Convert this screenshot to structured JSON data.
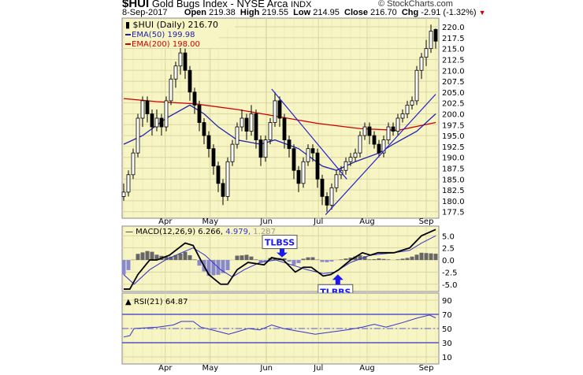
{
  "header": {
    "symbol": "$HUI",
    "name": "Gold Bugs Index - NYSE Arca",
    "exchange": "INDX",
    "brand": "© StockCharts.com",
    "date": "8-Sep-2017",
    "open_label": "Open",
    "open": "219.38",
    "high_label": "High",
    "high": "219.55",
    "low_label": "Low",
    "low": "214.95",
    "close_label": "Close",
    "close": "216.70",
    "chg_label": "Chg",
    "chg": "-2.91 (-1.32%)"
  },
  "chart_data": [
    {
      "type": "candlestick",
      "legend": [
        "$HUI (Daily) 216.70",
        "EMA(50) 199.98",
        "EMA(200) 198.00"
      ],
      "legend_placement": "top-left",
      "colors": {
        "price": "#000000",
        "ema50": "#2020b0",
        "ema200": "#cc0000",
        "trendline": "#2020d0",
        "background": "#f8f5c4",
        "grid": "#d9d6a0"
      },
      "ylim": [
        176,
        222
      ],
      "yticks": [
        "177.5",
        "180.0",
        "182.5",
        "185.0",
        "187.5",
        "190.0",
        "192.5",
        "195.0",
        "197.5",
        "200.0",
        "202.5",
        "205.0",
        "207.5",
        "210.0",
        "212.5",
        "215.0",
        "217.5",
        "220.0"
      ],
      "months": [
        {
          "label": "Apr",
          "at": 8.8
        },
        {
          "label": "May",
          "at": 18.3
        },
        {
          "label": "Jun",
          "at": 30.2
        },
        {
          "label": "Jul",
          "at": 41.2
        },
        {
          "label": "Aug",
          "at": 51.5
        },
        {
          "label": "Sep",
          "at": 64
        }
      ],
      "ohlc": [
        [
          181,
          184,
          180,
          182
        ],
        [
          182,
          187,
          181,
          186
        ],
        [
          186,
          192,
          185,
          191
        ],
        [
          191,
          200,
          190,
          199
        ],
        [
          199,
          204,
          197,
          203
        ],
        [
          203,
          204,
          198,
          200
        ],
        [
          200,
          201,
          195,
          197
        ],
        [
          197,
          201,
          196,
          199
        ],
        [
          199,
          200,
          195,
          197
        ],
        [
          197,
          204,
          196,
          203
        ],
        [
          203,
          209,
          202,
          208
        ],
        [
          208,
          212,
          206,
          211
        ],
        [
          211,
          216,
          209,
          214
        ],
        [
          214,
          215,
          208,
          210
        ],
        [
          210,
          211,
          203,
          205
        ],
        [
          205,
          206,
          200,
          202
        ],
        [
          202,
          203,
          196,
          198
        ],
        [
          198,
          199,
          193,
          195
        ],
        [
          195,
          196,
          190,
          192
        ],
        [
          192,
          193,
          186,
          188
        ],
        [
          188,
          189,
          182,
          184
        ],
        [
          184,
          185,
          179,
          181
        ],
        [
          181,
          190,
          180,
          189
        ],
        [
          189,
          194,
          188,
          193
        ],
        [
          193,
          198,
          192,
          197
        ],
        [
          197,
          201,
          196,
          199
        ],
        [
          199,
          200,
          194,
          196
        ],
        [
          196,
          202,
          195,
          200
        ],
        [
          200,
          201,
          192,
          194
        ],
        [
          194,
          195,
          188,
          190
        ],
        [
          190,
          195,
          189,
          194
        ],
        [
          194,
          199,
          193,
          198
        ],
        [
          198,
          205,
          197,
          203
        ],
        [
          203,
          204,
          197,
          199
        ],
        [
          199,
          200,
          192,
          194
        ],
        [
          194,
          195,
          190,
          192
        ],
        [
          192,
          193,
          185,
          187
        ],
        [
          187,
          188,
          182,
          184
        ],
        [
          184,
          190,
          183,
          189
        ],
        [
          189,
          193,
          188,
          192
        ],
        [
          192,
          193,
          189,
          191
        ],
        [
          191,
          192,
          183,
          185
        ],
        [
          185,
          186,
          179,
          181
        ],
        [
          181,
          182,
          177.5,
          179
        ],
        [
          179,
          184,
          178,
          183
        ],
        [
          183,
          187,
          182,
          186
        ],
        [
          186,
          188,
          185,
          187
        ],
        [
          187,
          190,
          186,
          189
        ],
        [
          189,
          191,
          188,
          190
        ],
        [
          190,
          192,
          189,
          191
        ],
        [
          191,
          196,
          190,
          195
        ],
        [
          195,
          198,
          194,
          197
        ],
        [
          197,
          198,
          193,
          195
        ],
        [
          195,
          196,
          192,
          193
        ],
        [
          193,
          194,
          190,
          191
        ],
        [
          191,
          195,
          190,
          194
        ],
        [
          194,
          198,
          193,
          197
        ],
        [
          197,
          198,
          195,
          196
        ],
        [
          196,
          200,
          195,
          199
        ],
        [
          199,
          201,
          198,
          200
        ],
        [
          200,
          203,
          199,
          202
        ],
        [
          202,
          204,
          201,
          203
        ],
        [
          203,
          211,
          202,
          210
        ],
        [
          210,
          214,
          208,
          213
        ],
        [
          213,
          217,
          211,
          215
        ],
        [
          215,
          220.5,
          214,
          219
        ],
        [
          219.4,
          219.6,
          215,
          216.7
        ]
      ],
      "ema50": [
        [
          0,
          193
        ],
        [
          4,
          195
        ],
        [
          9,
          199
        ],
        [
          14,
          202
        ],
        [
          17,
          200
        ],
        [
          20,
          197
        ],
        [
          24,
          194
        ],
        [
          29,
          193
        ],
        [
          32,
          194
        ],
        [
          37,
          192
        ],
        [
          42,
          188
        ],
        [
          45,
          187
        ],
        [
          49,
          189
        ],
        [
          54,
          191
        ],
        [
          57,
          193
        ],
        [
          62,
          196
        ],
        [
          66,
          200
        ]
      ],
      "ema200": [
        [
          0,
          203.5
        ],
        [
          7,
          202.8
        ],
        [
          15,
          202.3
        ],
        [
          24,
          201
        ],
        [
          32,
          199.5
        ],
        [
          41,
          197.8
        ],
        [
          50,
          196.6
        ],
        [
          58,
          196.2
        ],
        [
          66,
          198
        ]
      ],
      "trendlines": [
        {
          "from": [
            31.3,
            205.7
          ],
          "to": [
            47.2,
            185
          ]
        },
        {
          "from": [
            42.7,
            176.8
          ],
          "to": [
            66,
            204.5
          ]
        }
      ]
    },
    {
      "type": "line",
      "legend": [
        "MACD(12,26,9) 6.266",
        "4.979",
        "1.287"
      ],
      "ylim": [
        -6.5,
        7
      ],
      "yticks": [
        "5.0",
        "2.5",
        "0.0",
        "-2.5",
        "-5.0"
      ],
      "macd": [
        [
          0,
          -6
        ],
        [
          1.3,
          -6
        ],
        [
          3,
          -3
        ],
        [
          5.5,
          0
        ],
        [
          7,
          0
        ],
        [
          9.7,
          1
        ],
        [
          13,
          3.5
        ],
        [
          14.7,
          3
        ],
        [
          16.3,
          0
        ],
        [
          18,
          -3
        ],
        [
          20.5,
          -5
        ],
        [
          22,
          -5
        ],
        [
          24,
          -2
        ],
        [
          26.3,
          -0.5
        ],
        [
          29.7,
          -1
        ],
        [
          31.3,
          0.5
        ],
        [
          33.8,
          0
        ],
        [
          36.3,
          -2.5
        ],
        [
          38,
          -1.5
        ],
        [
          39.7,
          -1.5
        ],
        [
          42.2,
          -3.3
        ],
        [
          43.8,
          -3
        ],
        [
          45.5,
          -2
        ],
        [
          48,
          0
        ],
        [
          50.5,
          1.5
        ],
        [
          52.2,
          1
        ],
        [
          53.8,
          1.5
        ],
        [
          57.2,
          1.5
        ],
        [
          60.5,
          2.5
        ],
        [
          63,
          5
        ],
        [
          66,
          6.3
        ]
      ],
      "signal": [
        [
          0,
          -3
        ],
        [
          2.2,
          -5
        ],
        [
          5.5,
          -2
        ],
        [
          8.8,
          0
        ],
        [
          12.2,
          1.5
        ],
        [
          14.7,
          2.5
        ],
        [
          17.2,
          1
        ],
        [
          20.5,
          -2
        ],
        [
          23,
          -3.5
        ],
        [
          25.5,
          -2
        ],
        [
          28.8,
          -0.5
        ],
        [
          32.2,
          0
        ],
        [
          35.5,
          -1
        ],
        [
          38.8,
          -2
        ],
        [
          42.2,
          -2.8
        ],
        [
          44.7,
          -2.5
        ],
        [
          48,
          -0.5
        ],
        [
          52.2,
          1
        ],
        [
          57.2,
          1.5
        ],
        [
          60.5,
          2
        ],
        [
          63,
          3.5
        ],
        [
          66,
          5
        ]
      ],
      "colors": {
        "macd": "#000000",
        "signal": "#3333cc",
        "histogram_pos": "#666666",
        "histogram_neg": "#8888cc"
      },
      "annotations": [
        {
          "text": "TLBSS",
          "at": [
            33.5,
            0.4
          ],
          "arrow": "down"
        },
        {
          "text": "TLBBS",
          "at": [
            45.3,
            -2.8
          ],
          "arrow": "up"
        }
      ]
    },
    {
      "type": "line",
      "legend": [
        "RSI(21) 64.87"
      ],
      "ylim": [
        0,
        100
      ],
      "yticks": [
        "90",
        "70",
        "50",
        "30",
        "10"
      ],
      "levels": [
        70,
        50,
        30
      ],
      "rsi": [
        [
          0,
          38
        ],
        [
          1.3,
          40
        ],
        [
          2.2,
          50
        ],
        [
          7.2,
          52
        ],
        [
          10.5,
          55
        ],
        [
          12.2,
          60
        ],
        [
          14.7,
          60
        ],
        [
          16.3,
          52
        ],
        [
          20.5,
          45
        ],
        [
          22.2,
          42
        ],
        [
          23.8,
          45
        ],
        [
          26.3,
          50
        ],
        [
          28.8,
          48
        ],
        [
          31.3,
          55
        ],
        [
          33.8,
          50
        ],
        [
          36.3,
          47
        ],
        [
          38,
          45
        ],
        [
          40.5,
          42
        ],
        [
          43.8,
          45
        ],
        [
          47.2,
          48
        ],
        [
          50.5,
          52
        ],
        [
          53,
          56
        ],
        [
          55.5,
          52
        ],
        [
          58.8,
          58
        ],
        [
          62.2,
          65
        ],
        [
          64.7,
          69
        ],
        [
          66,
          65
        ]
      ]
    }
  ]
}
